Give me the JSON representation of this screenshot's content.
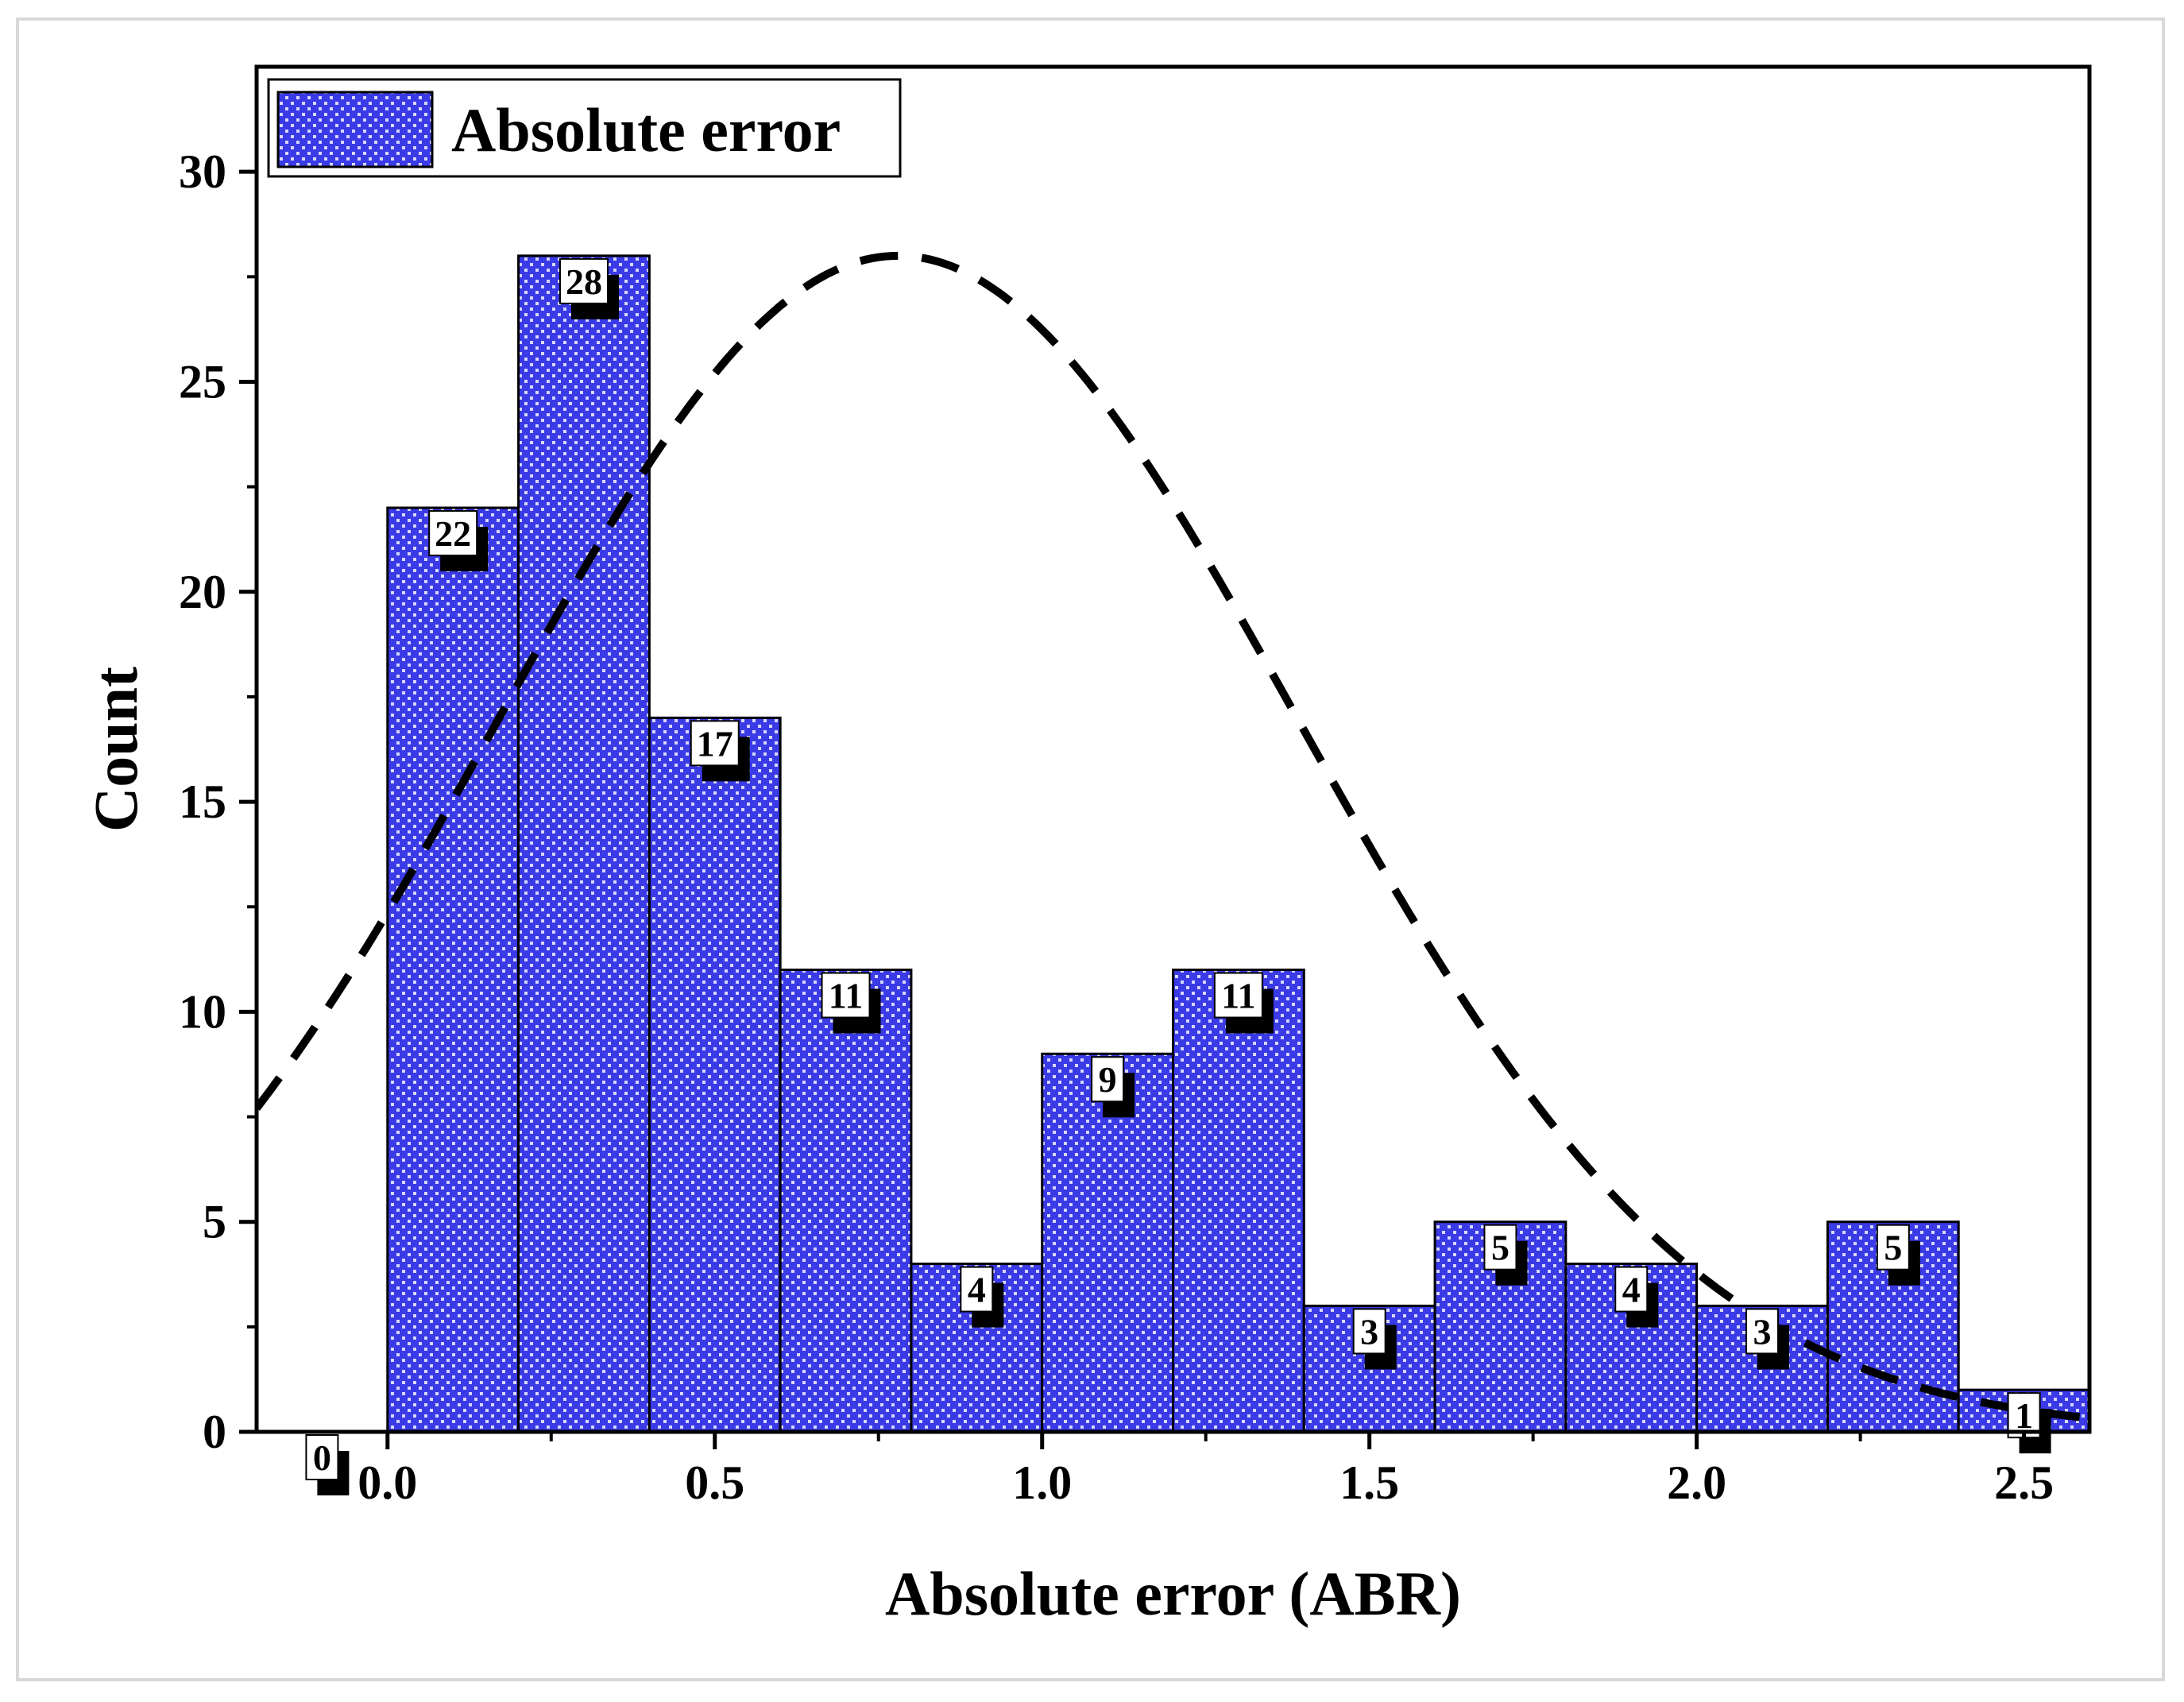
{
  "chart_data": {
    "type": "bar",
    "subtype": "histogram",
    "title": "",
    "xlabel": "Absolute error (ABR)",
    "ylabel": "Count",
    "xlim": [
      -0.2,
      2.6
    ],
    "ylim": [
      0,
      32.5
    ],
    "xticks": [
      0.0,
      0.5,
      1.0,
      1.5,
      2.0,
      2.5
    ],
    "xtick_labels": [
      "0.0",
      "0.5",
      "1.0",
      "1.5",
      "2.0",
      "2.5"
    ],
    "yticks": [
      0,
      5,
      10,
      15,
      20,
      25,
      30
    ],
    "ytick_labels": [
      "0",
      "5",
      "10",
      "15",
      "20",
      "25",
      "30"
    ],
    "grid": false,
    "legend": {
      "position": "top-left",
      "entries": [
        "Absolute error"
      ]
    },
    "bin_width": 0.2,
    "bins": [
      {
        "start": -0.2,
        "end": 0.0,
        "count": 0,
        "label": "0"
      },
      {
        "start": 0.0,
        "end": 0.2,
        "count": 22,
        "label": "22"
      },
      {
        "start": 0.2,
        "end": 0.4,
        "count": 28,
        "label": "28"
      },
      {
        "start": 0.4,
        "end": 0.6,
        "count": 17,
        "label": "17"
      },
      {
        "start": 0.6,
        "end": 0.8,
        "count": 11,
        "label": "11"
      },
      {
        "start": 0.8,
        "end": 1.0,
        "count": 4,
        "label": "4"
      },
      {
        "start": 1.0,
        "end": 1.2,
        "count": 9,
        "label": "9"
      },
      {
        "start": 1.2,
        "end": 1.4,
        "count": 11,
        "label": "11"
      },
      {
        "start": 1.4,
        "end": 1.6,
        "count": 3,
        "label": "3"
      },
      {
        "start": 1.6,
        "end": 1.8,
        "count": 5,
        "label": "5"
      },
      {
        "start": 1.8,
        "end": 2.0,
        "count": 4,
        "label": "4"
      },
      {
        "start": 2.0,
        "end": 2.2,
        "count": 3,
        "label": "3"
      },
      {
        "start": 2.2,
        "end": 2.4,
        "count": 5,
        "label": "5"
      },
      {
        "start": 2.4,
        "end": 2.6,
        "count": 1,
        "label": "1"
      }
    ],
    "fit_curve": {
      "type": "normal",
      "style": "dashed",
      "mean": 0.78,
      "sd": 0.61,
      "peak": 28
    },
    "colors": {
      "bar_fill": "#3a3ae6",
      "bar_dots": "#d8d8ff",
      "bar_edge": "#000000",
      "curve": "#000000"
    }
  }
}
